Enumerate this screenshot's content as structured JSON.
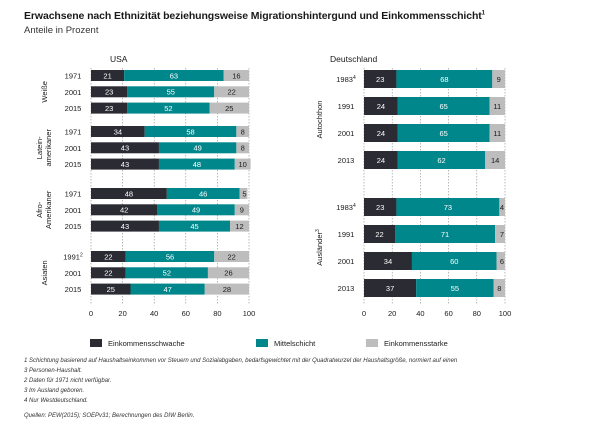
{
  "title": "Erwachsene nach Ethnizität beziehungsweise Migrationshintergund und Einkommensschicht",
  "title_sup": "1",
  "subtitle": "Anteile in Prozent",
  "colors": {
    "low": "#2b2b33",
    "middle": "#00878b",
    "high": "#bdbdbd",
    "grid": "#8a8a8a",
    "text_light": "#ffffff",
    "text_dark": "#1a1a1a"
  },
  "legend": [
    "Einkommensschwache",
    "Mittelschicht",
    "Einkommensstarke"
  ],
  "chart_data": [
    {
      "type": "bar",
      "stacked": true,
      "orientation": "horizontal",
      "panel_title": "USA",
      "xlim": [
        0,
        100
      ],
      "xticks": [
        "0",
        "20",
        "40",
        "60",
        "80",
        "100"
      ],
      "groups": [
        {
          "label": "Weiße",
          "rows": [
            {
              "year": "1971",
              "sup": "",
              "values": [
                21,
                63,
                16
              ]
            },
            {
              "year": "2001",
              "sup": "",
              "values": [
                23,
                55,
                22
              ]
            },
            {
              "year": "2015",
              "sup": "",
              "values": [
                23,
                52,
                25
              ]
            }
          ]
        },
        {
          "label": "Latein-\namerikaner",
          "rows": [
            {
              "year": "1971",
              "sup": "",
              "values": [
                34,
                58,
                8
              ]
            },
            {
              "year": "2001",
              "sup": "",
              "values": [
                43,
                49,
                8
              ]
            },
            {
              "year": "2015",
              "sup": "",
              "values": [
                43,
                48,
                10
              ]
            }
          ]
        },
        {
          "label": "Afro-\nAmerikaner",
          "rows": [
            {
              "year": "1971",
              "sup": "",
              "values": [
                48,
                46,
                5
              ]
            },
            {
              "year": "2001",
              "sup": "",
              "values": [
                42,
                49,
                9
              ]
            },
            {
              "year": "2015",
              "sup": "",
              "values": [
                43,
                45,
                12
              ]
            }
          ]
        },
        {
          "label": "Asiaten",
          "rows": [
            {
              "year": "1991",
              "sup": "2",
              "values": [
                22,
                56,
                22
              ]
            },
            {
              "year": "2001",
              "sup": "",
              "values": [
                22,
                52,
                26
              ]
            },
            {
              "year": "2015",
              "sup": "",
              "values": [
                25,
                47,
                28
              ]
            }
          ]
        }
      ]
    },
    {
      "type": "bar",
      "stacked": true,
      "orientation": "horizontal",
      "panel_title": "Deutschland",
      "xlim": [
        0,
        100
      ],
      "xticks": [
        "0",
        "20",
        "40",
        "60",
        "80",
        "100"
      ],
      "groups": [
        {
          "label": "Autochthon",
          "rows": [
            {
              "year": "1983",
              "sup": "4",
              "values": [
                23,
                68,
                9
              ]
            },
            {
              "year": "1991",
              "sup": "",
              "values": [
                24,
                65,
                11
              ]
            },
            {
              "year": "2001",
              "sup": "",
              "values": [
                24,
                65,
                11
              ]
            },
            {
              "year": "2013",
              "sup": "",
              "values": [
                24,
                62,
                14
              ]
            }
          ]
        },
        {
          "label": "Ausländer",
          "label_sup": "3",
          "rows": [
            {
              "year": "1983",
              "sup": "4",
              "values": [
                23,
                73,
                4
              ]
            },
            {
              "year": "1991",
              "sup": "",
              "values": [
                22,
                71,
                7
              ]
            },
            {
              "year": "2001",
              "sup": "",
              "values": [
                34,
                60,
                6
              ]
            },
            {
              "year": "2013",
              "sup": "",
              "values": [
                37,
                55,
                8
              ]
            }
          ]
        }
      ]
    }
  ],
  "notes": [
    "1  Schichtung basierend auf Haushaltseinkommen vor Steuern und Sozialabgaben, bedarfsgewichtet mit der Quadratwurzel der Haushaltsgröße, normiert auf einen",
    "3 Personen-Haushalt.",
    "2  Daten für 1971 nicht verfügbar.",
    "3  Im Ausland geboren.",
    "4  Nur Westdeutschland."
  ],
  "source": "Quellen: PEW(2015); SOEPv31; Berechnungen des DIW Berlin."
}
